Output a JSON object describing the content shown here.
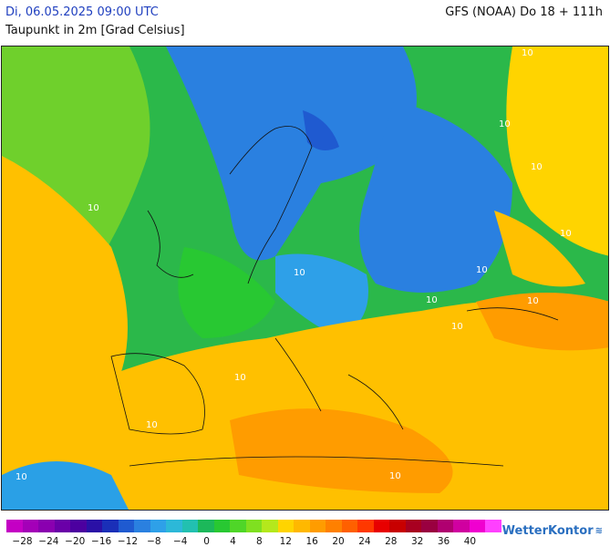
{
  "header": {
    "date_time": "Di, 06.05.2025 09:00 UTC",
    "parameter": "Taupunkt in 2m [Grad Celsius]",
    "model_run": "GFS (NOAA) Do 18 + 111h"
  },
  "map": {
    "contour_labels": [
      "10",
      "10",
      "10",
      "10",
      "10",
      "10",
      "10",
      "10",
      "10",
      "10",
      "10",
      "10",
      "10",
      "10"
    ]
  },
  "legend": {
    "colors": [
      "#c400c4",
      "#a400b8",
      "#8a00b0",
      "#6a00a8",
      "#4c00a0",
      "#2a10a6",
      "#1a2fb8",
      "#1f5ad0",
      "#2a80e0",
      "#2ea0e8",
      "#2cb8d8",
      "#22c0b0",
      "#1cb85a",
      "#28c832",
      "#4fd628",
      "#7fe020",
      "#b4e81c",
      "#ffd400",
      "#ffb800",
      "#ff9c00",
      "#ff8000",
      "#ff6000",
      "#ff3800",
      "#e80000",
      "#c80000",
      "#a80020",
      "#9a0040",
      "#b00070",
      "#d000a0",
      "#f000d0",
      "#ff40ff"
    ],
    "tick_labels": [
      "−28",
      "−24",
      "−20",
      "−16",
      "−12",
      "−8",
      "−4",
      "0",
      "4",
      "8",
      "12",
      "16",
      "20",
      "24",
      "28",
      "32",
      "36",
      "40"
    ]
  },
  "branding": {
    "logo_text": "WetterKontor",
    "logo_icon": "wind-swirl-icon",
    "accent": "#2a6fc0"
  }
}
